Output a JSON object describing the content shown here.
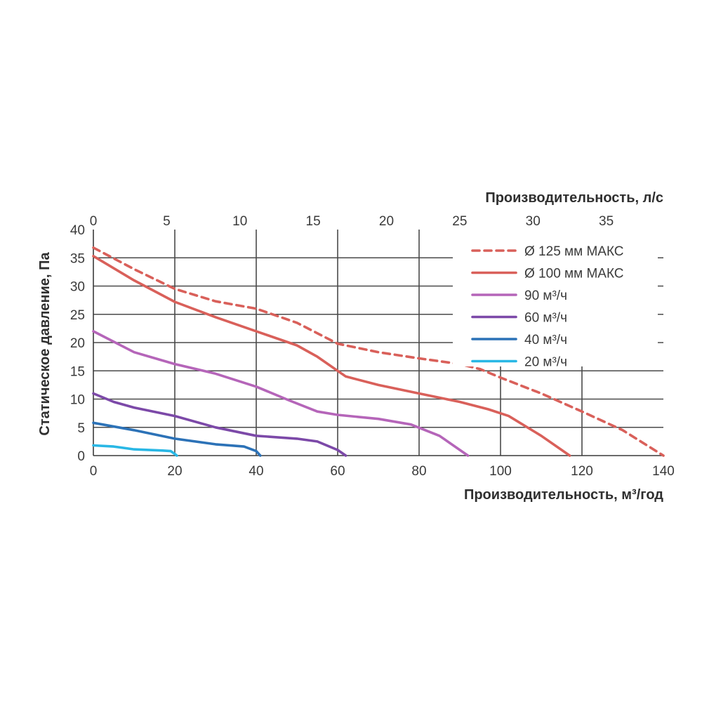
{
  "chart_data": {
    "type": "line",
    "xlabel": "Производительность, м³/год",
    "x2label": "Производительность, л/с",
    "ylabel": "Статическое давление, Па",
    "xlim": [
      0,
      140
    ],
    "ylim": [
      0,
      40
    ],
    "x2lim": [
      0,
      38.9
    ],
    "x_ticks": [
      "0",
      "20",
      "40",
      "60",
      "80",
      "100",
      "120",
      "140"
    ],
    "y_ticks": [
      "0",
      "5",
      "10",
      "15",
      "20",
      "25",
      "30",
      "35",
      "40"
    ],
    "x2_ticks": [
      "0",
      "5",
      "10",
      "15",
      "20",
      "25",
      "30",
      "35"
    ],
    "x_tick_values": [
      0,
      20,
      40,
      60,
      80,
      100,
      120,
      140
    ],
    "y_tick_values": [
      0,
      5,
      10,
      15,
      20,
      25,
      30,
      35,
      40
    ],
    "x2_tick_values": [
      0,
      5,
      10,
      15,
      20,
      25,
      30,
      35
    ],
    "grid": true,
    "legend_position": "top-right",
    "series": [
      {
        "name": "Ø 125 мм МАКС",
        "color": "#d9605a",
        "dashed": true,
        "points": [
          [
            0,
            36.8
          ],
          [
            10,
            33
          ],
          [
            20,
            29.5
          ],
          [
            30,
            27.3
          ],
          [
            40,
            26
          ],
          [
            50,
            23.5
          ],
          [
            60,
            19.8
          ],
          [
            70,
            18.3
          ],
          [
            80,
            17.2
          ],
          [
            90,
            16.2
          ],
          [
            95,
            15.3
          ],
          [
            100,
            13.8
          ],
          [
            110,
            11
          ],
          [
            120,
            7.8
          ],
          [
            130,
            4.5
          ],
          [
            140,
            0
          ]
        ]
      },
      {
        "name": "Ø 100 мм МАКС",
        "color": "#d9605a",
        "dashed": false,
        "points": [
          [
            0,
            35.3
          ],
          [
            10,
            31
          ],
          [
            20,
            27.2
          ],
          [
            30,
            24.5
          ],
          [
            40,
            22
          ],
          [
            50,
            19.5
          ],
          [
            55,
            17.5
          ],
          [
            62,
            14
          ],
          [
            70,
            12.5
          ],
          [
            80,
            11
          ],
          [
            90,
            9.5
          ],
          [
            97,
            8.2
          ],
          [
            102,
            7
          ],
          [
            110,
            3.5
          ],
          [
            117,
            0
          ]
        ]
      },
      {
        "name": "90 м³/ч",
        "color": "#b565b9",
        "dashed": false,
        "points": [
          [
            0,
            22
          ],
          [
            10,
            18.3
          ],
          [
            20,
            16.2
          ],
          [
            30,
            14.5
          ],
          [
            40,
            12.2
          ],
          [
            48,
            9.8
          ],
          [
            55,
            7.8
          ],
          [
            60,
            7.2
          ],
          [
            70,
            6.5
          ],
          [
            78,
            5.5
          ],
          [
            85,
            3.5
          ],
          [
            92,
            0
          ]
        ]
      },
      {
        "name": "60 м³/ч",
        "color": "#7c49a8",
        "dashed": false,
        "points": [
          [
            0,
            11
          ],
          [
            5,
            9.5
          ],
          [
            10,
            8.5
          ],
          [
            20,
            7
          ],
          [
            30,
            5
          ],
          [
            40,
            3.5
          ],
          [
            50,
            3
          ],
          [
            55,
            2.5
          ],
          [
            60,
            1
          ],
          [
            62,
            0
          ]
        ]
      },
      {
        "name": "40 м³/ч",
        "color": "#2c72b7",
        "dashed": false,
        "points": [
          [
            0,
            5.8
          ],
          [
            10,
            4.5
          ],
          [
            20,
            3
          ],
          [
            30,
            2
          ],
          [
            37,
            1.6
          ],
          [
            40,
            0.8
          ],
          [
            41,
            0
          ]
        ]
      },
      {
        "name": "20 м³/ч",
        "color": "#29b7e5",
        "dashed": false,
        "points": [
          [
            0,
            1.8
          ],
          [
            5,
            1.6
          ],
          [
            10,
            1.1
          ],
          [
            17,
            0.9
          ],
          [
            19,
            0.8
          ],
          [
            20,
            0.3
          ],
          [
            20.5,
            0
          ]
        ]
      }
    ]
  }
}
